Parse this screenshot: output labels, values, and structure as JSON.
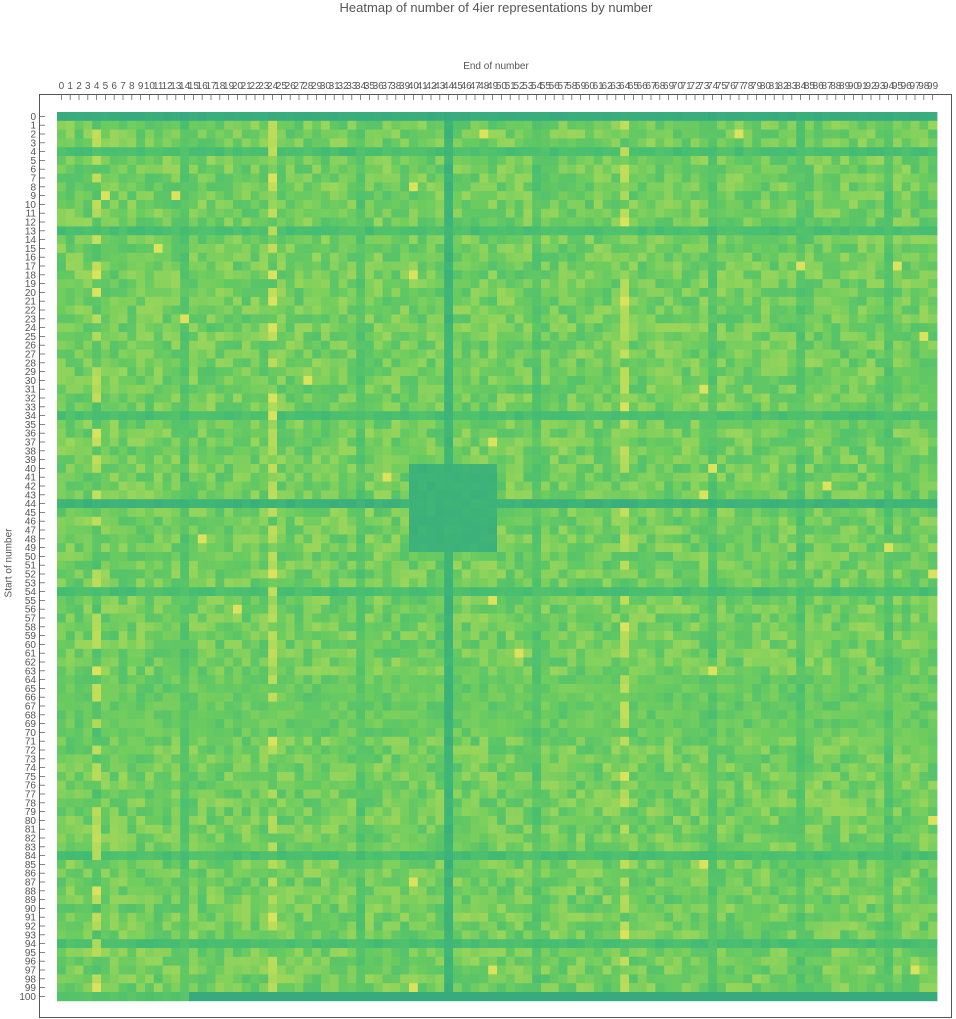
{
  "chart_data": {
    "type": "heatmap",
    "title": "Heatmap of number of 4ier representations by number",
    "xlabel": "End of number",
    "ylabel": "Start of number",
    "x_categories": [
      "0",
      "1",
      "2",
      "3",
      "4",
      "5",
      "6",
      "7",
      "8",
      "9",
      "10",
      "11",
      "12",
      "13",
      "14",
      "15",
      "16",
      "17",
      "18",
      "19",
      "20",
      "21",
      "22",
      "23",
      "24",
      "25",
      "26",
      "27",
      "28",
      "29",
      "30",
      "31",
      "32",
      "33",
      "34",
      "35",
      "36",
      "37",
      "38",
      "39",
      "40",
      "41",
      "42",
      "43",
      "44",
      "45",
      "46",
      "47",
      "48",
      "49",
      "50",
      "51",
      "52",
      "53",
      "54",
      "55",
      "56",
      "57",
      "58",
      "59",
      "60",
      "61",
      "62",
      "63",
      "64",
      "65",
      "66",
      "67",
      "68",
      "69",
      "70",
      "71",
      "72",
      "73",
      "74",
      "75",
      "76",
      "77",
      "78",
      "79",
      "80",
      "81",
      "82",
      "83",
      "84",
      "85",
      "86",
      "87",
      "88",
      "89",
      "90",
      "91",
      "92",
      "93",
      "94",
      "95",
      "96",
      "97",
      "98",
      "99"
    ],
    "y_categories": [
      "0",
      "1",
      "2",
      "3",
      "4",
      "5",
      "6",
      "7",
      "8",
      "9",
      "10",
      "11",
      "12",
      "13",
      "14",
      "15",
      "16",
      "17",
      "18",
      "19",
      "20",
      "21",
      "22",
      "23",
      "24",
      "25",
      "26",
      "27",
      "28",
      "29",
      "30",
      "31",
      "32",
      "33",
      "34",
      "35",
      "36",
      "37",
      "38",
      "39",
      "40",
      "41",
      "42",
      "43",
      "44",
      "45",
      "46",
      "47",
      "48",
      "49",
      "50",
      "51",
      "52",
      "53",
      "54",
      "55",
      "56",
      "57",
      "58",
      "59",
      "60",
      "61",
      "62",
      "63",
      "64",
      "65",
      "66",
      "67",
      "68",
      "69",
      "70",
      "71",
      "72",
      "73",
      "74",
      "75",
      "76",
      "77",
      "78",
      "79",
      "80",
      "81",
      "82",
      "83",
      "84",
      "85",
      "86",
      "87",
      "88",
      "89",
      "90",
      "91",
      "92",
      "93",
      "94",
      "95",
      "96",
      "97",
      "98",
      "99",
      "100"
    ],
    "value_scale": "relative 0 (low, teal) to 1 (high, yellow); no legend printed",
    "colormap": [
      "#31a284",
      "#45bd72",
      "#6dcc5f",
      "#a6d85a",
      "#e2e35b"
    ],
    "background_level": 0.52,
    "low_rows": [
      0,
      100
    ],
    "low_rows_value": 0.08,
    "low_row_100_start_col": 15,
    "low_block": {
      "rows": [
        40,
        49
      ],
      "cols": [
        40,
        49
      ],
      "value": 0.13
    },
    "low_cross": {
      "row": 44,
      "col": 44,
      "value": 0.12
    },
    "darker_rows": {
      "rows": [
        4,
        13,
        34,
        44,
        54,
        84,
        94
      ],
      "value": 0.22
    },
    "darker_cols": {
      "cols": [
        4,
        14,
        34,
        54,
        74,
        84,
        94
      ],
      "value": 0.28
    },
    "darker_bands": [
      {
        "rows": [
          64,
          70
        ],
        "cols": [
          0,
          99
        ],
        "value": 0.38
      }
    ],
    "bright_cols": [
      4,
      24,
      64
    ],
    "bright_cells": [
      [
        2,
        48
      ],
      [
        2,
        77
      ],
      [
        7,
        24
      ],
      [
        8,
        40
      ],
      [
        9,
        5
      ],
      [
        9,
        13
      ],
      [
        12,
        64
      ],
      [
        15,
        11
      ],
      [
        17,
        84
      ],
      [
        17,
        95
      ],
      [
        18,
        4
      ],
      [
        18,
        24
      ],
      [
        18,
        40
      ],
      [
        20,
        4
      ],
      [
        21,
        64
      ],
      [
        21,
        24
      ],
      [
        23,
        14
      ],
      [
        24,
        24
      ],
      [
        25,
        98
      ],
      [
        30,
        28
      ],
      [
        31,
        73
      ],
      [
        32,
        24
      ],
      [
        33,
        64
      ],
      [
        34,
        24
      ],
      [
        36,
        4
      ],
      [
        37,
        49
      ],
      [
        40,
        74
      ],
      [
        41,
        37
      ],
      [
        42,
        87
      ],
      [
        43,
        73
      ],
      [
        48,
        16
      ],
      [
        49,
        94
      ],
      [
        52,
        24
      ],
      [
        52,
        99
      ],
      [
        55,
        49
      ],
      [
        56,
        20
      ],
      [
        58,
        64
      ],
      [
        61,
        52
      ],
      [
        63,
        4
      ],
      [
        63,
        74
      ],
      [
        71,
        24
      ],
      [
        75,
        64
      ],
      [
        80,
        99
      ],
      [
        85,
        73
      ],
      [
        87,
        40
      ],
      [
        88,
        4
      ],
      [
        91,
        24
      ],
      [
        93,
        64
      ],
      [
        97,
        49
      ],
      [
        97,
        97
      ],
      [
        99,
        4
      ],
      [
        99,
        40
      ]
    ]
  }
}
